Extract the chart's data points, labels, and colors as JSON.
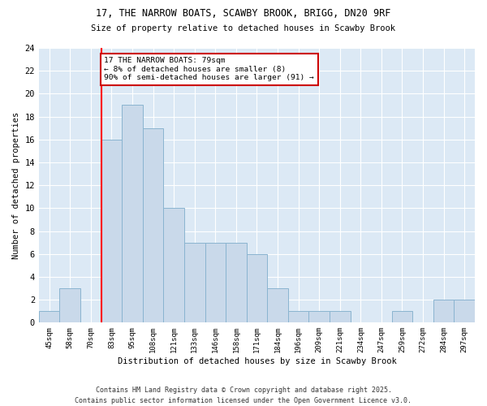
{
  "title_line1": "17, THE NARROW BOATS, SCAWBY BROOK, BRIGG, DN20 9RF",
  "title_line2": "Size of property relative to detached houses in Scawby Brook",
  "xlabel": "Distribution of detached houses by size in Scawby Brook",
  "ylabel": "Number of detached properties",
  "categories": [
    "45sqm",
    "58sqm",
    "70sqm",
    "83sqm",
    "95sqm",
    "108sqm",
    "121sqm",
    "133sqm",
    "146sqm",
    "158sqm",
    "171sqm",
    "184sqm",
    "196sqm",
    "209sqm",
    "221sqm",
    "234sqm",
    "247sqm",
    "259sqm",
    "272sqm",
    "284sqm",
    "297sqm"
  ],
  "values": [
    1,
    3,
    0,
    16,
    19,
    17,
    10,
    7,
    7,
    7,
    6,
    3,
    1,
    1,
    1,
    0,
    0,
    1,
    0,
    2,
    2
  ],
  "bar_color": "#c9d9ea",
  "bar_edge_color": "#8ab4d0",
  "red_line_index": 3,
  "annotation_text": "17 THE NARROW BOATS: 79sqm\n← 8% of detached houses are smaller (8)\n90% of semi-detached houses are larger (91) →",
  "annotation_box_color": "#ffffff",
  "annotation_box_edge": "#cc0000",
  "footer_line1": "Contains HM Land Registry data © Crown copyright and database right 2025.",
  "footer_line2": "Contains public sector information licensed under the Open Government Licence v3.0.",
  "ylim": [
    0,
    24
  ],
  "yticks": [
    0,
    2,
    4,
    6,
    8,
    10,
    12,
    14,
    16,
    18,
    20,
    22,
    24
  ],
  "fig_bg_color": "#ffffff",
  "plot_bg_color": "#dce9f5"
}
